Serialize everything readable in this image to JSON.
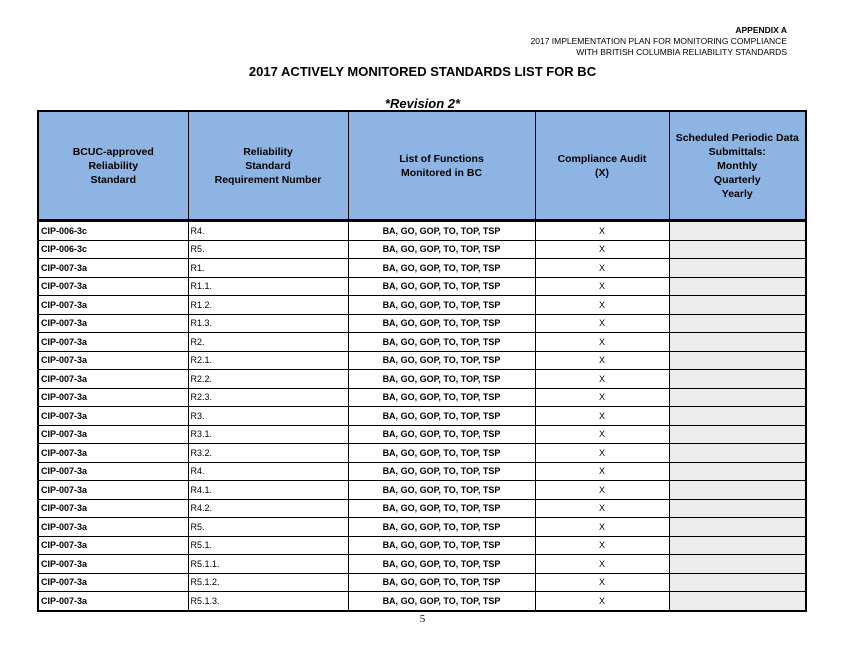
{
  "header": {
    "appendix": "APPENDIX A",
    "line2": "2017 IMPLEMENTATION PLAN FOR MONITORING COMPLIANCE",
    "line3": "WITH BRITISH COLUMBIA RELIABILITY STANDARDS"
  },
  "title": "2017 ACTIVELY MONITORED STANDARDS LIST FOR BC",
  "revision": "*Revision 2*",
  "table": {
    "columns": [
      "BCUC-approved\nReliability\nStandard",
      "Reliability\nStandard\nRequirement Number",
      "List of Functions\nMonitored in BC",
      "Compliance Audit\n(X)",
      "Scheduled Periodic Data\nSubmittals:\nMonthly\nQuarterly\nYearly"
    ],
    "rows": [
      [
        "CIP-006-3c",
        "R4.",
        "BA, GO, GOP, TO, TOP, TSP",
        "X",
        ""
      ],
      [
        "CIP-006-3c",
        "R5.",
        "BA, GO, GOP, TO, TOP, TSP",
        "X",
        ""
      ],
      [
        "CIP-007-3a",
        "R1.",
        "BA, GO, GOP, TO, TOP, TSP",
        "X",
        ""
      ],
      [
        "CIP-007-3a",
        "R1.1.",
        "BA, GO, GOP, TO, TOP, TSP",
        "X",
        ""
      ],
      [
        "CIP-007-3a",
        "R1.2.",
        "BA, GO, GOP, TO, TOP, TSP",
        "X",
        ""
      ],
      [
        "CIP-007-3a",
        "R1.3.",
        "BA, GO, GOP, TO, TOP, TSP",
        "X",
        ""
      ],
      [
        "CIP-007-3a",
        "R2.",
        "BA, GO, GOP, TO, TOP, TSP",
        "X",
        ""
      ],
      [
        "CIP-007-3a",
        "R2.1.",
        "BA, GO, GOP, TO, TOP, TSP",
        "X",
        ""
      ],
      [
        "CIP-007-3a",
        "R2.2.",
        "BA, GO, GOP, TO, TOP, TSP",
        "X",
        ""
      ],
      [
        "CIP-007-3a",
        "R2.3.",
        "BA, GO, GOP, TO, TOP, TSP",
        "X",
        ""
      ],
      [
        "CIP-007-3a",
        "R3.",
        "BA, GO, GOP, TO, TOP, TSP",
        "X",
        ""
      ],
      [
        "CIP-007-3a",
        "R3.1.",
        "BA, GO, GOP, TO, TOP, TSP",
        "X",
        ""
      ],
      [
        "CIP-007-3a",
        "R3.2.",
        "BA, GO, GOP, TO, TOP, TSP",
        "X",
        ""
      ],
      [
        "CIP-007-3a",
        "R4.",
        "BA, GO, GOP, TO, TOP, TSP",
        "X",
        ""
      ],
      [
        "CIP-007-3a",
        "R4.1.",
        "BA, GO, GOP, TO, TOP, TSP",
        "X",
        ""
      ],
      [
        "CIP-007-3a",
        "R4.2.",
        "BA, GO, GOP, TO, TOP, TSP",
        "X",
        ""
      ],
      [
        "CIP-007-3a",
        "R5.",
        "BA, GO, GOP, TO, TOP, TSP",
        "X",
        ""
      ],
      [
        "CIP-007-3a",
        "R5.1.",
        "BA, GO, GOP, TO, TOP, TSP",
        "X",
        ""
      ],
      [
        "CIP-007-3a",
        "R5.1.1.",
        "BA, GO, GOP, TO, TOP, TSP",
        "X",
        ""
      ],
      [
        "CIP-007-3a",
        "R5.1.2.",
        "BA, GO, GOP, TO, TOP, TSP",
        "X",
        ""
      ],
      [
        "CIP-007-3a",
        "R5.1.3.",
        "BA, GO, GOP, TO, TOP, TSP",
        "X",
        ""
      ]
    ]
  },
  "page_number": "5",
  "colors": {
    "header_fill": "#8db4e2",
    "shaded_cell": "#ececec"
  }
}
